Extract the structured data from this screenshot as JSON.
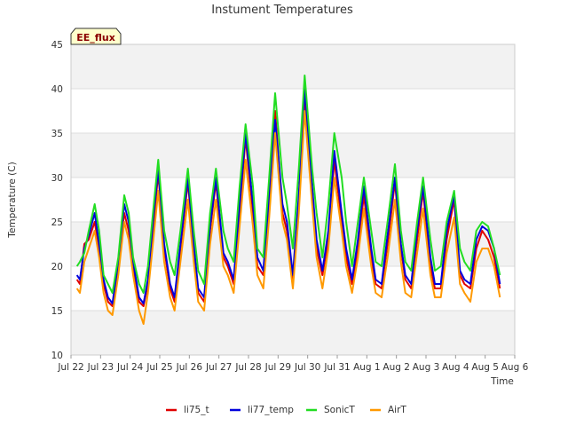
{
  "chart_data": {
    "type": "line",
    "title": "Instument Temperatures",
    "badge": "EE_flux",
    "xlabel": "Time",
    "ylabel": "Temperature (C)",
    "ylim": [
      10,
      45
    ],
    "yticks": [
      10,
      15,
      20,
      25,
      30,
      35,
      40,
      45
    ],
    "xlim": [
      0,
      15
    ],
    "xticks": [
      {
        "pos": 0,
        "label": "Jul 22"
      },
      {
        "pos": 1,
        "label": "Jul 23"
      },
      {
        "pos": 2,
        "label": "Jul 24"
      },
      {
        "pos": 3,
        "label": "Jul 25"
      },
      {
        "pos": 4,
        "label": "Jul 26"
      },
      {
        "pos": 5,
        "label": "Jul 27"
      },
      {
        "pos": 6,
        "label": "Jul 28"
      },
      {
        "pos": 7,
        "label": "Jul 29"
      },
      {
        "pos": 8,
        "label": "Jul 30"
      },
      {
        "pos": 9,
        "label": "Jul 31"
      },
      {
        "pos": 10,
        "label": "Aug 1"
      },
      {
        "pos": 11,
        "label": "Aug 2"
      },
      {
        "pos": 12,
        "label": "Aug 3"
      },
      {
        "pos": 13,
        "label": "Aug 4"
      },
      {
        "pos": 14,
        "label": "Aug 5"
      },
      {
        "pos": 15,
        "label": "Aug 6"
      }
    ],
    "x_units": "days since Jul 22 00:00",
    "grid": true,
    "legend_position": "bottom-center",
    "series": [
      {
        "name": "li75_t",
        "color": "#e00000",
        "x": [
          0.2,
          0.3,
          0.45,
          0.6,
          0.8,
          0.95,
          1.1,
          1.25,
          1.4,
          1.6,
          1.8,
          1.95,
          2.1,
          2.3,
          2.45,
          2.6,
          2.8,
          2.95,
          3.15,
          3.35,
          3.5,
          3.7,
          3.95,
          4.15,
          4.3,
          4.5,
          4.7,
          4.9,
          5.15,
          5.3,
          5.5,
          5.7,
          5.9,
          6.15,
          6.3,
          6.5,
          6.7,
          6.9,
          7.15,
          7.3,
          7.5,
          7.7,
          7.9,
          8.15,
          8.3,
          8.5,
          8.7,
          8.9,
          9.15,
          9.3,
          9.5,
          9.7,
          9.9,
          10.15,
          10.3,
          10.5,
          10.7,
          10.95,
          11.15,
          11.3,
          11.5,
          11.7,
          11.9,
          12.15,
          12.3,
          12.5,
          12.7,
          12.95,
          13.15,
          13.3,
          13.5,
          13.7,
          13.9,
          14.1,
          14.3,
          14.5
        ],
        "y": [
          18.5,
          18.0,
          22.5,
          23.0,
          25.0,
          22.0,
          18.0,
          16.0,
          15.5,
          20.0,
          26.0,
          24.0,
          20.0,
          16.0,
          15.5,
          18.0,
          25.0,
          30.5,
          22.0,
          17.5,
          16.0,
          22.0,
          29.5,
          22.0,
          17.0,
          16.0,
          24.0,
          29.5,
          21.0,
          20.0,
          18.0,
          26.0,
          34.5,
          26.0,
          20.0,
          19.0,
          27.0,
          37.5,
          26.0,
          24.0,
          18.0,
          27.0,
          38.5,
          28.0,
          22.0,
          19.0,
          23.0,
          32.0,
          25.0,
          21.0,
          18.0,
          22.0,
          28.0,
          21.0,
          18.0,
          17.5,
          22.5,
          29.5,
          22.0,
          18.5,
          17.5,
          23.0,
          28.5,
          20.0,
          17.5,
          17.5,
          23.0,
          27.5,
          19.0,
          18.0,
          17.5,
          22.0,
          24.0,
          23.0,
          21.0,
          17.5
        ]
      },
      {
        "name": "li77_temp",
        "color": "#0000dd",
        "x": [
          0.2,
          0.3,
          0.45,
          0.6,
          0.8,
          0.95,
          1.1,
          1.25,
          1.4,
          1.6,
          1.8,
          1.95,
          2.1,
          2.3,
          2.45,
          2.6,
          2.8,
          2.95,
          3.15,
          3.35,
          3.5,
          3.7,
          3.95,
          4.15,
          4.3,
          4.5,
          4.7,
          4.9,
          5.15,
          5.3,
          5.5,
          5.7,
          5.9,
          6.15,
          6.3,
          6.5,
          6.7,
          6.9,
          7.15,
          7.3,
          7.5,
          7.7,
          7.9,
          8.15,
          8.3,
          8.5,
          8.7,
          8.9,
          9.15,
          9.3,
          9.5,
          9.7,
          9.9,
          10.15,
          10.3,
          10.5,
          10.7,
          10.95,
          11.15,
          11.3,
          11.5,
          11.7,
          11.9,
          12.15,
          12.3,
          12.5,
          12.7,
          12.95,
          13.15,
          13.3,
          13.5,
          13.7,
          13.9,
          14.1,
          14.3,
          14.5
        ],
        "y": [
          19.0,
          18.5,
          22.0,
          23.5,
          26.0,
          22.5,
          18.5,
          16.5,
          15.8,
          20.5,
          27.0,
          25.0,
          20.5,
          16.5,
          15.8,
          18.5,
          26.0,
          31.0,
          22.5,
          18.0,
          16.5,
          22.5,
          30.0,
          22.5,
          17.5,
          16.5,
          24.5,
          30.0,
          21.5,
          20.5,
          18.5,
          27.0,
          35.0,
          27.0,
          21.0,
          19.5,
          28.0,
          36.5,
          27.0,
          25.0,
          19.0,
          28.0,
          40.0,
          29.0,
          23.0,
          19.5,
          24.0,
          33.0,
          26.0,
          22.0,
          18.5,
          23.0,
          29.0,
          22.0,
          18.5,
          18.0,
          23.5,
          30.0,
          22.5,
          19.0,
          18.0,
          24.0,
          29.0,
          21.0,
          18.0,
          18.0,
          24.0,
          28.0,
          19.5,
          18.5,
          18.0,
          23.0,
          24.5,
          24.0,
          22.0,
          18.0
        ]
      },
      {
        "name": "SonicT",
        "color": "#22dd22",
        "x": [
          0.2,
          0.3,
          0.45,
          0.6,
          0.8,
          0.95,
          1.1,
          1.25,
          1.4,
          1.6,
          1.8,
          1.95,
          2.1,
          2.3,
          2.45,
          2.6,
          2.8,
          2.95,
          3.15,
          3.35,
          3.5,
          3.7,
          3.95,
          4.15,
          4.3,
          4.5,
          4.7,
          4.9,
          5.15,
          5.3,
          5.5,
          5.7,
          5.9,
          6.15,
          6.3,
          6.5,
          6.7,
          6.9,
          7.15,
          7.3,
          7.5,
          7.7,
          7.9,
          8.15,
          8.3,
          8.5,
          8.7,
          8.9,
          9.15,
          9.3,
          9.5,
          9.7,
          9.9,
          10.15,
          10.3,
          10.5,
          10.7,
          10.95,
          11.15,
          11.3,
          11.5,
          11.7,
          11.9,
          12.15,
          12.3,
          12.5,
          12.7,
          12.95,
          13.15,
          13.3,
          13.5,
          13.7,
          13.9,
          14.1,
          14.3,
          14.5
        ],
        "y": [
          20.0,
          20.5,
          21.5,
          24.0,
          27.0,
          24.0,
          19.0,
          18.0,
          17.0,
          21.0,
          28.0,
          26.0,
          21.0,
          18.0,
          17.0,
          20.0,
          27.0,
          32.0,
          24.0,
          20.5,
          19.0,
          24.0,
          31.0,
          24.0,
          19.5,
          18.0,
          26.0,
          31.0,
          24.0,
          22.0,
          20.5,
          29.0,
          36.0,
          29.0,
          22.0,
          21.0,
          30.0,
          39.5,
          30.0,
          27.0,
          22.0,
          31.0,
          41.5,
          31.0,
          26.0,
          21.0,
          27.0,
          35.0,
          30.0,
          25.0,
          20.0,
          25.0,
          30.0,
          24.0,
          20.5,
          20.0,
          25.0,
          31.5,
          24.0,
          20.5,
          19.5,
          25.0,
          30.0,
          23.0,
          19.5,
          20.0,
          25.0,
          28.5,
          22.0,
          20.5,
          19.5,
          24.0,
          25.0,
          24.5,
          22.0,
          19.0
        ]
      },
      {
        "name": "AirT",
        "color": "#ff9900",
        "x": [
          0.2,
          0.3,
          0.45,
          0.6,
          0.8,
          0.95,
          1.1,
          1.25,
          1.4,
          1.6,
          1.8,
          1.95,
          2.1,
          2.3,
          2.45,
          2.6,
          2.8,
          2.95,
          3.15,
          3.35,
          3.5,
          3.7,
          3.95,
          4.15,
          4.3,
          4.5,
          4.7,
          4.9,
          5.15,
          5.3,
          5.5,
          5.7,
          5.9,
          6.15,
          6.3,
          6.5,
          6.7,
          6.9,
          7.15,
          7.3,
          7.5,
          7.7,
          7.9,
          8.15,
          8.3,
          8.5,
          8.7,
          8.9,
          9.15,
          9.3,
          9.5,
          9.7,
          9.9,
          10.15,
          10.3,
          10.5,
          10.7,
          10.95,
          11.15,
          11.3,
          11.5,
          11.7,
          11.9,
          12.15,
          12.3,
          12.5,
          12.7,
          12.95,
          13.15,
          13.3,
          13.5,
          13.7,
          13.9,
          14.1,
          14.3,
          14.5
        ],
        "y": [
          17.5,
          17.0,
          20.5,
          22.0,
          24.0,
          21.0,
          17.0,
          15.0,
          14.5,
          19.0,
          25.0,
          23.0,
          19.0,
          15.0,
          13.5,
          17.0,
          23.5,
          28.5,
          20.5,
          16.5,
          15.0,
          20.5,
          27.5,
          20.5,
          16.0,
          15.0,
          22.5,
          27.5,
          20.0,
          19.0,
          17.0,
          24.5,
          32.0,
          24.5,
          19.0,
          17.5,
          25.5,
          35.0,
          25.0,
          23.0,
          17.5,
          26.0,
          37.5,
          27.0,
          21.0,
          17.5,
          22.0,
          30.0,
          24.0,
          20.0,
          17.0,
          21.0,
          26.5,
          20.0,
          17.0,
          16.5,
          21.0,
          27.5,
          20.5,
          17.0,
          16.5,
          21.5,
          26.5,
          19.0,
          16.5,
          16.5,
          21.5,
          25.5,
          18.0,
          17.0,
          16.0,
          20.5,
          22.0,
          22.0,
          20.0,
          16.5
        ]
      }
    ]
  }
}
